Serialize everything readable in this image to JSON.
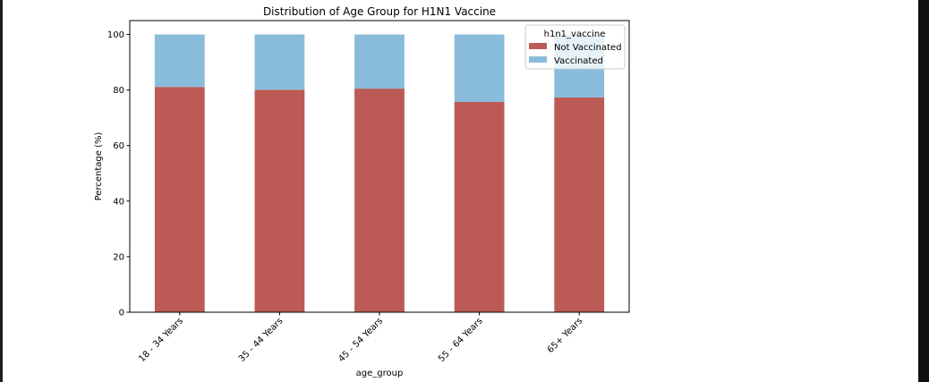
{
  "chart_data": {
    "type": "bar",
    "stacked": true,
    "title": "Distribution of Age Group for H1N1 Vaccine",
    "xlabel": "age_group",
    "ylabel": "Percentage (%)",
    "categories": [
      "18 - 34 Years",
      "35 - 44 Years",
      "45 - 54 Years",
      "55 - 64 Years",
      "65+ Years"
    ],
    "series": [
      {
        "name": "Not Vaccinated",
        "color": "#bc5b55",
        "values": [
          81.1,
          80.1,
          80.5,
          75.7,
          77.3
        ]
      },
      {
        "name": "Vaccinated",
        "color": "#89bcdb",
        "values": [
          18.9,
          19.9,
          19.5,
          24.3,
          22.7
        ]
      }
    ],
    "ylim": [
      0,
      105
    ],
    "yticks": [
      0,
      20,
      40,
      60,
      80,
      100
    ],
    "legend": {
      "title": "h1n1_vaccine",
      "placement": "top-right"
    },
    "grid": false
  }
}
